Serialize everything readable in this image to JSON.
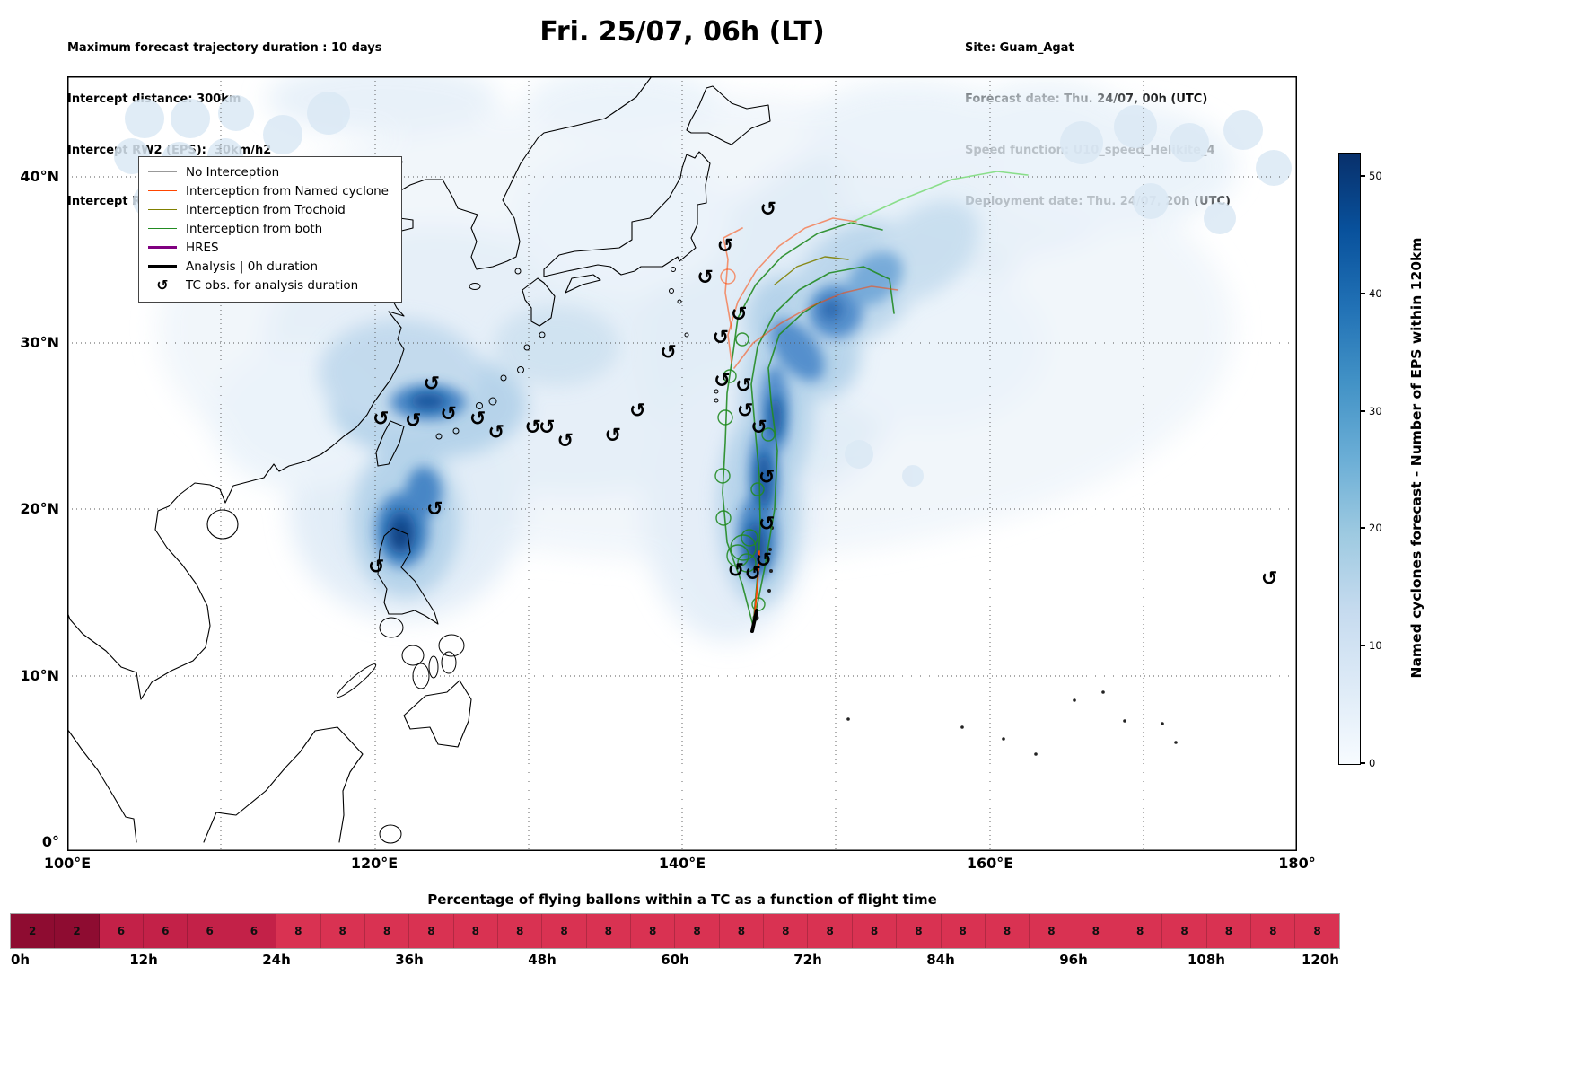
{
  "header": {
    "info_left": {
      "line1": "Maximum forecast trajectory duration : 10 days",
      "line2": "Intercept distance: 300km",
      "line3": "Intercept RW2 (EPS):  30km/h2",
      "line4": "Intercept RW2 (HRES): 30km/h2"
    },
    "title": "Fri. 25/07, 06h (LT)",
    "info_right": {
      "line1": "Site: Guam_Agat",
      "line2": "Forecast date: Thu. 24/07, 00h (UTC)",
      "line3": "Speed function: U10_speed_Helikite_4",
      "line4": "Deployment date: Thu. 24/07, 20h (UTC)"
    }
  },
  "legend": {
    "items": [
      {
        "label": "No Interception",
        "color": "#999999",
        "weight": 1.5,
        "type": "line"
      },
      {
        "label": "Interception from Named cyclone",
        "color": "#ff4500",
        "weight": 1.5,
        "type": "line"
      },
      {
        "label": "Interception from Trochoid",
        "color": "#808000",
        "weight": 1.5,
        "type": "line"
      },
      {
        "label": "Interception from both",
        "color": "#228b22",
        "weight": 1.5,
        "type": "line"
      },
      {
        "label": "HRES",
        "color": "#800080",
        "weight": 3.5,
        "type": "line"
      },
      {
        "label": "Analysis | 0h duration",
        "color": "#000000",
        "weight": 3.5,
        "type": "line"
      },
      {
        "label": "TC obs. for analysis duration",
        "symbol": "↺",
        "type": "symbol"
      }
    ]
  },
  "map": {
    "lat_ticks": [
      "40°N",
      "30°N",
      "20°N",
      "10°N",
      "0°"
    ],
    "lon_ticks": [
      "100°E",
      "120°E",
      "140°E",
      "160°E",
      "180°"
    ],
    "lon_range": [
      100,
      180
    ],
    "lat_range": [
      0,
      46
    ]
  },
  "colorbar": {
    "label": "Named cyclones forecast - Number of EPS within 120km",
    "ticks": [
      50,
      40,
      30,
      20,
      10,
      0
    ],
    "vmax": 52,
    "gradient_bottom_to_top": [
      "#f7fbff",
      "#deebf7",
      "#c6dbef",
      "#9ecae1",
      "#6baed6",
      "#4292c6",
      "#2171b5",
      "#08519c",
      "#08306b"
    ]
  },
  "chart_data": {
    "type": "map-trajectories+heatmap+bar",
    "heatmap_legend_range": [
      0,
      52
    ],
    "tc_observations": {
      "symbol": "↺",
      "positions_lon_lat": [
        [
          123.7,
          27.5
        ],
        [
          120.4,
          25.4
        ],
        [
          122.5,
          25.3
        ],
        [
          124.8,
          25.7
        ],
        [
          126.7,
          25.4
        ],
        [
          127.9,
          24.6
        ],
        [
          130.3,
          24.9
        ],
        [
          131.2,
          24.9
        ],
        [
          132.4,
          24.1
        ],
        [
          135.5,
          24.4
        ],
        [
          137.1,
          25.9
        ],
        [
          123.9,
          20.0
        ],
        [
          120.1,
          16.5
        ],
        [
          139.1,
          29.4
        ],
        [
          145.6,
          38.0
        ],
        [
          142.8,
          35.8
        ],
        [
          141.5,
          33.9
        ],
        [
          143.7,
          31.7
        ],
        [
          142.5,
          30.3
        ],
        [
          142.6,
          27.7
        ],
        [
          144.0,
          27.4
        ],
        [
          144.1,
          25.9
        ],
        [
          145.0,
          24.9
        ],
        [
          145.5,
          21.9
        ],
        [
          145.5,
          19.1
        ],
        [
          145.3,
          16.9
        ],
        [
          143.5,
          16.3
        ],
        [
          144.6,
          16.1
        ],
        [
          178.2,
          15.8
        ]
      ]
    },
    "flight_time_bar": {
      "type": "bar",
      "title": "Percentage of flying ballons within a TC as a function of flight time",
      "step_hours": 4,
      "time_labels": [
        "0h",
        "12h",
        "24h",
        "36h",
        "48h",
        "60h",
        "72h",
        "84h",
        "96h",
        "108h",
        "120h"
      ],
      "values": [
        2,
        2,
        6,
        6,
        6,
        6,
        8,
        8,
        8,
        8,
        8,
        8,
        8,
        8,
        8,
        8,
        8,
        8,
        8,
        8,
        8,
        8,
        8,
        8,
        8,
        8,
        8,
        8,
        8,
        8
      ],
      "value_colors": {
        "2": "#8e0c31",
        "6": "#c32148",
        "8": "#d93252"
      }
    }
  }
}
